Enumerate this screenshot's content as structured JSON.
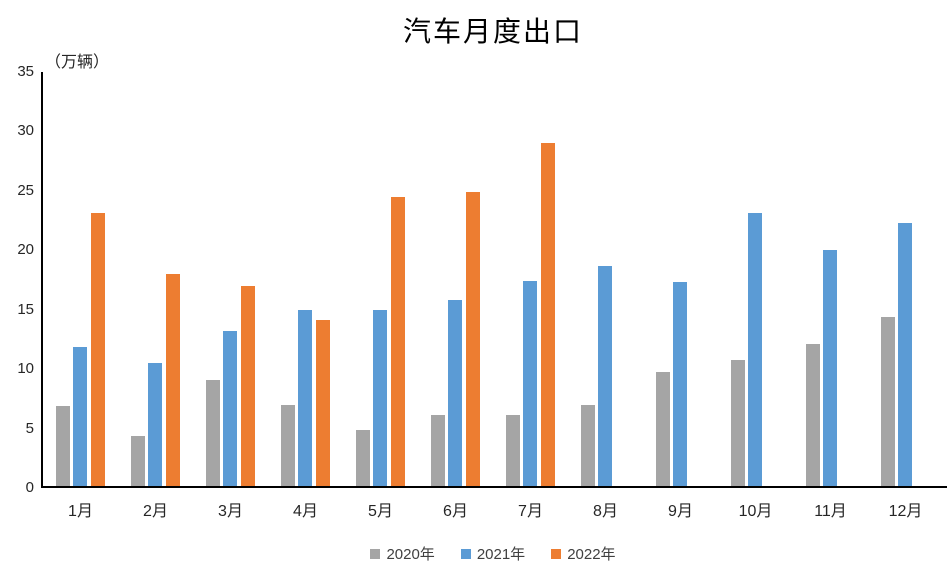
{
  "chart_data": {
    "type": "bar",
    "title": "汽车月度出口",
    "unit_label": "（万辆）",
    "categories": [
      "1月",
      "2月",
      "3月",
      "4月",
      "5月",
      "6月",
      "7月",
      "8月",
      "9月",
      "10月",
      "11月",
      "12月"
    ],
    "series": [
      {
        "name": "2020年",
        "color": "#A5A5A5",
        "values": [
          6.9,
          4.4,
          9.1,
          7.0,
          4.9,
          6.1,
          6.1,
          7.0,
          9.8,
          10.8,
          12.1,
          14.4
        ]
      },
      {
        "name": "2021年",
        "color": "#5B9BD5",
        "values": [
          11.9,
          10.5,
          13.2,
          15.0,
          15.0,
          15.8,
          17.4,
          18.7,
          17.3,
          23.1,
          20.0,
          22.3
        ]
      },
      {
        "name": "2022年",
        "color": "#ED7D31",
        "values": [
          23.1,
          18.0,
          17.0,
          14.1,
          24.5,
          24.9,
          29.0,
          null,
          null,
          null,
          null,
          null
        ]
      }
    ],
    "xlabel": "",
    "ylabel": "（万辆）",
    "ylim": [
      0,
      35
    ],
    "yticks": [
      0,
      5,
      10,
      15,
      20,
      25,
      30,
      35
    ],
    "grid": false,
    "legend_position": "bottom"
  }
}
